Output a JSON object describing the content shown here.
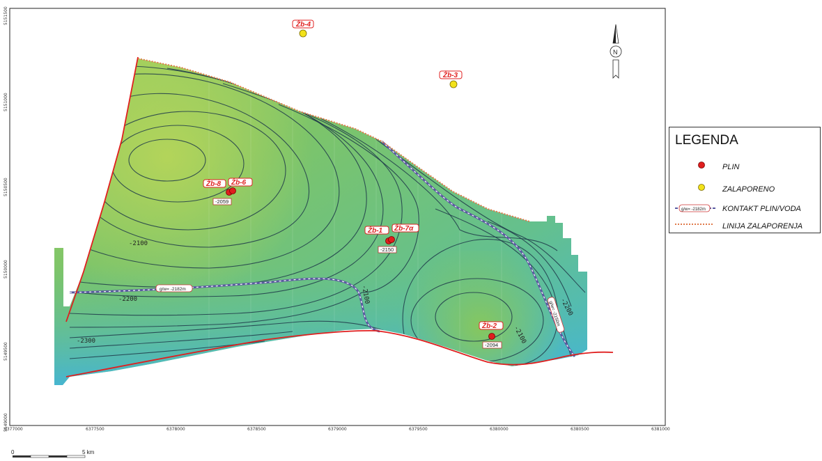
{
  "map": {
    "x_ticks": [
      "6377000",
      "6377500",
      "6378000",
      "6378500",
      "6379000",
      "6379500",
      "6380000",
      "6380500",
      "6381000"
    ],
    "y_ticks": [
      "5151500",
      "5151000",
      "5150500",
      "5150000",
      "5149500",
      "5149000"
    ],
    "contour_labels": [
      "-2100",
      "-2200",
      "-2300",
      "-2100",
      "-2100",
      "-2200"
    ],
    "gw_labels": [
      "g/w= -2182m",
      "g/w= -2150m"
    ],
    "wells": [
      {
        "name": "Žb-4",
        "status": "zalaporeno",
        "depth": ""
      },
      {
        "name": "Žb-3",
        "status": "zalaporeno",
        "depth": ""
      },
      {
        "name": "Žb-8",
        "status": "plin",
        "depth": "-2059"
      },
      {
        "name": "Žb-6",
        "status": "plin",
        "depth": ""
      },
      {
        "name": "Žb-1",
        "status": "plin",
        "depth": "-2150"
      },
      {
        "name": "Žb-7α",
        "status": "plin",
        "depth": ""
      },
      {
        "name": "Žb-2",
        "status": "plin",
        "depth": "-2094"
      }
    ],
    "north": "N",
    "colors": {
      "plin": "#e01e1e",
      "zalaporeno": "#f2e21a",
      "boundary": "#e01e1e",
      "zalaporenja": "#e07a4a",
      "contact": "#5a5aa0"
    }
  },
  "legend": {
    "title": "LEGENDA",
    "items": [
      {
        "label": "PLIN",
        "symbol": "red-dot"
      },
      {
        "label": "ZALAPORENO",
        "symbol": "yellow-dot"
      },
      {
        "label": "KONTAKT PLIN/VODA",
        "symbol": "contact-line",
        "symbol_text": "g/w= -2182m"
      },
      {
        "label": "LINIJA ZALAPORENJA",
        "symbol": "dotted-line"
      }
    ]
  },
  "scale": {
    "start": "0",
    "end": "5 km"
  }
}
